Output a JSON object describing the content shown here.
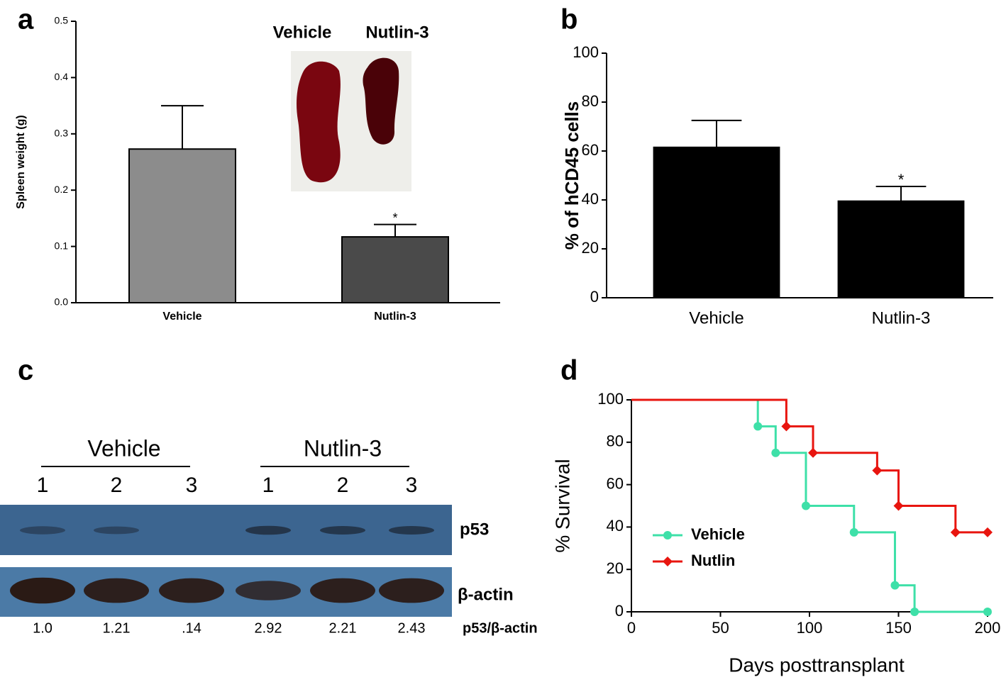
{
  "chart_data": [
    {
      "type": "bar",
      "panel": "a",
      "ylabel": "Spleen weight (g)",
      "categories": [
        "Vehicle",
        "Nutlin-3"
      ],
      "values": [
        0.273,
        0.117
      ],
      "errors": [
        0.077,
        0.022
      ],
      "colors": [
        "#8c8c8c",
        "#4a4a4a"
      ],
      "annotation": "*",
      "inset_labels": [
        "Vehicle",
        "Nutlin-3"
      ],
      "ylim": [
        0,
        0.5
      ],
      "yticks": [
        {
          "value": 0,
          "label": "0.0"
        },
        0.1,
        0.2,
        0.3,
        0.4,
        0.5
      ]
    },
    {
      "type": "bar",
      "panel": "b",
      "ylabel": "% of hCD45 cells",
      "categories": [
        "Vehicle",
        "Nutlin-3"
      ],
      "values": [
        61.5,
        39.5
      ],
      "errors": [
        11,
        6
      ],
      "colors": [
        "#000000",
        "#000000"
      ],
      "annotation": "*",
      "ylim": [
        0,
        100
      ],
      "yticks": [
        0,
        20,
        40,
        60,
        80,
        100
      ]
    },
    {
      "type": "line",
      "panel": "d",
      "xlabel": "Days posttransplant",
      "ylabel": "% Survival",
      "series": [
        {
          "name": "Vehicle",
          "color": "#3ee0a8",
          "marker": "circle",
          "x": [
            0,
            71,
            81,
            98,
            125,
            148,
            159,
            200
          ],
          "values": [
            100,
            87.5,
            75,
            50,
            37.5,
            12.5,
            0,
            0
          ]
        },
        {
          "name": "Nutlin",
          "color": "#e8150f",
          "marker": "diamond",
          "x": [
            0,
            87,
            102,
            138,
            150,
            182,
            200
          ],
          "values": [
            100,
            87.5,
            75,
            66.7,
            50,
            37.5,
            37.5
          ]
        }
      ],
      "xlim": [
        0,
        200
      ],
      "xticks": [
        0,
        50,
        100,
        150,
        200
      ],
      "ylim": [
        0,
        100
      ],
      "yticks": [
        0,
        20,
        40,
        60,
        80,
        100
      ],
      "legend": "lower left"
    }
  ],
  "blot": {
    "panel": "c",
    "groups": [
      "Vehicle",
      "Nutlin-3"
    ],
    "lanes": [
      "1",
      "2",
      "3",
      "1",
      "2",
      "3"
    ],
    "rows": [
      "p53",
      "β-actin"
    ],
    "ratio_label": "p53/β-actin",
    "ratios": [
      "1.0",
      "1.21",
      ".14",
      "2.92",
      "2.21",
      "2.43"
    ]
  }
}
